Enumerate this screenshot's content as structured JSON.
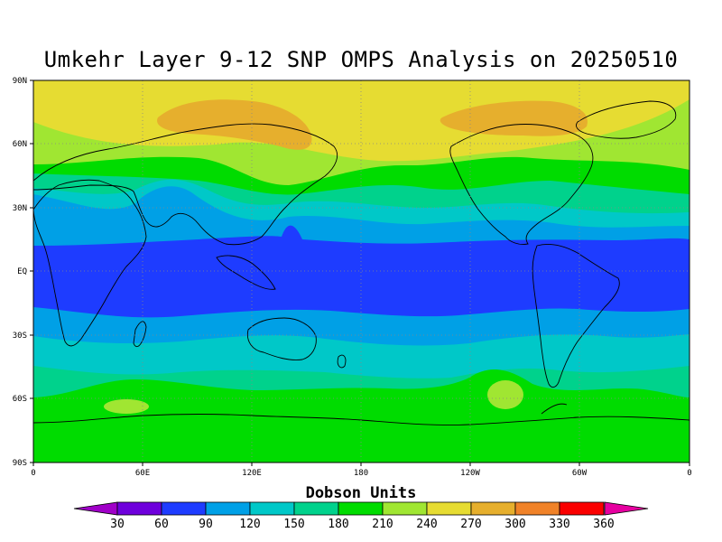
{
  "title": "Umkehr Layer 9-12 SNP OMPS Analysis on 20250510",
  "map": {
    "lat_labels": [
      "90N",
      "60N",
      "30N",
      "EQ",
      "30S",
      "60S",
      "90S"
    ],
    "lon_labels": [
      "0",
      "60E",
      "120E",
      "180",
      "120W",
      "60W",
      "0"
    ]
  },
  "colorbar": {
    "title": "Dobson Units",
    "levels": [
      "30",
      "60",
      "90",
      "120",
      "150",
      "180",
      "210",
      "240",
      "270",
      "300",
      "330",
      "360"
    ],
    "colors": [
      "#a000c8",
      "#6e00dc",
      "#1e3cff",
      "#00a0e6",
      "#00c8c8",
      "#00d28c",
      "#00dc00",
      "#a0e632",
      "#e6dc32",
      "#e6af2d",
      "#f08228",
      "#fa0000",
      "#e600a0"
    ]
  }
}
